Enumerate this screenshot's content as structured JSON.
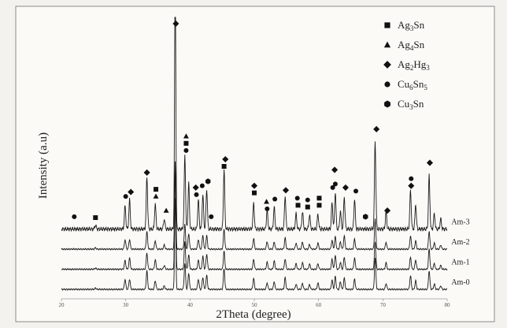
{
  "chart_data": {
    "type": "line",
    "title": "",
    "xlabel": "2Theta (degree)",
    "ylabel": "Intensity (a.u)",
    "xlim": [
      20,
      80
    ],
    "x_ticks": [
      "20",
      "30",
      "40",
      "50",
      "60",
      "70",
      "80"
    ],
    "grid": false,
    "legend_position": "top-right",
    "legend": [
      {
        "marker": "square",
        "base": "Ag",
        "sub1": "3",
        "mid": "Sn",
        "sub2": ""
      },
      {
        "marker": "triangle",
        "base": "Ag",
        "sub1": "4",
        "mid": "Sn",
        "sub2": ""
      },
      {
        "marker": "diamond",
        "base": "Ag",
        "sub1": "2",
        "mid": "Hg",
        "sub2": "3"
      },
      {
        "marker": "circle",
        "base": "Cu",
        "sub1": "6",
        "mid": "Sn",
        "sub2": "5"
      },
      {
        "marker": "hexagon",
        "base": "Cu",
        "sub1": "3",
        "mid": "Sn",
        "sub2": ""
      }
    ],
    "series": [
      {
        "name": "Am-0",
        "offset": 0
      },
      {
        "name": "Am-1",
        "offset": 1
      },
      {
        "name": "Am-2",
        "offset": 2
      },
      {
        "name": "Am-3",
        "offset": 3
      }
    ],
    "peaks": [
      {
        "x": 25.3,
        "h": 0.04,
        "w": 0.15
      },
      {
        "x": 29.9,
        "h": 0.28,
        "w": 0.15
      },
      {
        "x": 30.6,
        "h": 0.33,
        "w": 0.15
      },
      {
        "x": 33.3,
        "h": 0.55,
        "w": 0.15
      },
      {
        "x": 34.6,
        "h": 0.28,
        "w": 0.15
      },
      {
        "x": 36.0,
        "h": 0.12,
        "w": 0.15
      },
      {
        "x": 37.7,
        "h": 2.8,
        "w": 0.13
      },
      {
        "x": 39.2,
        "h": 0.8,
        "w": 0.15
      },
      {
        "x": 39.8,
        "h": 0.48,
        "w": 0.15
      },
      {
        "x": 41.3,
        "h": 0.3,
        "w": 0.15
      },
      {
        "x": 42.0,
        "h": 0.4,
        "w": 0.15
      },
      {
        "x": 42.6,
        "h": 0.45,
        "w": 0.15
      },
      {
        "x": 45.3,
        "h": 0.62,
        "w": 0.15
      },
      {
        "x": 49.9,
        "h": 0.32,
        "w": 0.15
      },
      {
        "x": 52.0,
        "h": 0.22,
        "w": 0.15
      },
      {
        "x": 53.1,
        "h": 0.25,
        "w": 0.15
      },
      {
        "x": 54.8,
        "h": 0.35,
        "w": 0.15
      },
      {
        "x": 56.5,
        "h": 0.18,
        "w": 0.15
      },
      {
        "x": 57.5,
        "h": 0.2,
        "w": 0.15
      },
      {
        "x": 58.6,
        "h": 0.16,
        "w": 0.15
      },
      {
        "x": 59.9,
        "h": 0.18,
        "w": 0.15
      },
      {
        "x": 62.1,
        "h": 0.3,
        "w": 0.15
      },
      {
        "x": 62.6,
        "h": 0.42,
        "w": 0.15
      },
      {
        "x": 63.4,
        "h": 0.22,
        "w": 0.15
      },
      {
        "x": 64.0,
        "h": 0.38,
        "w": 0.15
      },
      {
        "x": 65.6,
        "h": 0.34,
        "w": 0.15
      },
      {
        "x": 68.8,
        "h": 0.92,
        "w": 0.15
      },
      {
        "x": 70.5,
        "h": 0.2,
        "w": 0.15
      },
      {
        "x": 74.3,
        "h": 0.4,
        "w": 0.15
      },
      {
        "x": 75.1,
        "h": 0.28,
        "w": 0.15
      },
      {
        "x": 77.2,
        "h": 0.58,
        "w": 0.15
      },
      {
        "x": 78.0,
        "h": 0.18,
        "w": 0.15
      },
      {
        "x": 79.0,
        "h": 0.12,
        "w": 0.15
      }
    ],
    "peak_markers": [
      {
        "x": 22.0,
        "shape": "circle"
      },
      {
        "x": 25.3,
        "shape": "square"
      },
      {
        "x": 30.0,
        "shape": "circle"
      },
      {
        "x": 30.8,
        "shape": "diamond"
      },
      {
        "x": 33.3,
        "shape": "diamond"
      },
      {
        "x": 34.7,
        "shape": "triangle"
      },
      {
        "x": 34.7,
        "shape": "square",
        "level": 1
      },
      {
        "x": 36.3,
        "shape": "triangle"
      },
      {
        "x": 37.8,
        "shape": "diamond",
        "top": true
      },
      {
        "x": 39.4,
        "shape": "triangle",
        "level": 2
      },
      {
        "x": 39.4,
        "shape": "square",
        "level": 1
      },
      {
        "x": 39.4,
        "shape": "circle"
      },
      {
        "x": 40.9,
        "shape": "diamond",
        "level": 1
      },
      {
        "x": 41.0,
        "shape": "circle"
      },
      {
        "x": 41.9,
        "shape": "circle"
      },
      {
        "x": 42.8,
        "shape": "hexagon"
      },
      {
        "x": 43.3,
        "shape": "circle"
      },
      {
        "x": 45.5,
        "shape": "diamond",
        "level": 1
      },
      {
        "x": 45.3,
        "shape": "square"
      },
      {
        "x": 50.0,
        "shape": "diamond",
        "level": 1
      },
      {
        "x": 50.0,
        "shape": "square"
      },
      {
        "x": 51.9,
        "shape": "triangle"
      },
      {
        "x": 52.0,
        "shape": "circle",
        "level": -1
      },
      {
        "x": 53.2,
        "shape": "circle"
      },
      {
        "x": 54.9,
        "shape": "diamond"
      },
      {
        "x": 56.7,
        "shape": "circle",
        "level": 1
      },
      {
        "x": 56.8,
        "shape": "square"
      },
      {
        "x": 58.3,
        "shape": "square"
      },
      {
        "x": 58.3,
        "shape": "circle",
        "level": 1
      },
      {
        "x": 60.1,
        "shape": "square",
        "level": 1
      },
      {
        "x": 60.1,
        "shape": "square"
      },
      {
        "x": 62.5,
        "shape": "diamond",
        "level": 2
      },
      {
        "x": 62.2,
        "shape": "circle",
        "level": 1
      },
      {
        "x": 62.6,
        "shape": "circle"
      },
      {
        "x": 64.2,
        "shape": "diamond"
      },
      {
        "x": 65.8,
        "shape": "circle"
      },
      {
        "x": 67.3,
        "shape": "hexagon"
      },
      {
        "x": 69.0,
        "shape": "diamond",
        "level": 3
      },
      {
        "x": 70.7,
        "shape": "diamond",
        "level": -1
      },
      {
        "x": 74.4,
        "shape": "circle",
        "level": 1
      },
      {
        "x": 74.4,
        "shape": "diamond"
      },
      {
        "x": 77.3,
        "shape": "diamond",
        "level": 1
      }
    ]
  }
}
